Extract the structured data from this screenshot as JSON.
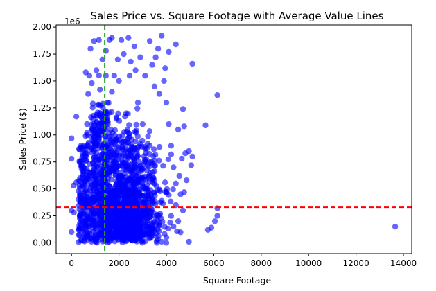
{
  "chart_data": {
    "type": "scatter",
    "title": "Sales Price vs. Square Footage with Average Value Lines",
    "xlabel": "Square Footage",
    "ylabel": "Sales Price ($)",
    "y_offset_label": "1e6",
    "xlim": [
      -650,
      14350
    ],
    "ylim": [
      -0.1,
      2.02
    ],
    "x_ticks": [
      0,
      2000,
      4000,
      6000,
      8000,
      10000,
      12000,
      14000
    ],
    "x_tick_labels": [
      "0",
      "2000",
      "4000",
      "6000",
      "8000",
      "10000",
      "12000",
      "14000"
    ],
    "y_ticks": [
      0.0,
      0.25,
      0.5,
      0.75,
      1.0,
      1.25,
      1.5,
      1.75,
      2.0
    ],
    "y_tick_labels": [
      "0.00",
      "0.25",
      "0.50",
      "0.75",
      "1.00",
      "1.25",
      "1.50",
      "1.75",
      "2.00"
    ],
    "grid": false,
    "point_color": "#0000ff",
    "point_alpha": 0.6,
    "avg_sqft_line": {
      "x": 1400,
      "color": "#2ca02c",
      "style": "dashed"
    },
    "avg_price_line": {
      "y": 0.33,
      "color": "#ff0000",
      "style": "dashed"
    },
    "series": [
      {
        "points": [
          [
            13650,
            0.15
          ],
          [
            6150,
            1.37
          ],
          [
            6150,
            0.32
          ],
          [
            6150,
            0.25
          ],
          [
            5750,
            0.12
          ],
          [
            5900,
            0.14
          ],
          [
            6050,
            0.2
          ],
          [
            5650,
            1.09
          ],
          [
            5100,
            1.66
          ],
          [
            4950,
            0.01
          ],
          [
            5100,
            0.8
          ],
          [
            5050,
            0.72
          ],
          [
            4950,
            0.85
          ],
          [
            4800,
            0.83
          ],
          [
            4700,
            1.24
          ],
          [
            4750,
            1.08
          ],
          [
            4500,
            1.05
          ],
          [
            4400,
            1.84
          ],
          [
            4100,
            1.77
          ],
          [
            3800,
            1.92
          ],
          [
            3650,
            1.8
          ],
          [
            3300,
            1.87
          ],
          [
            2400,
            1.9
          ],
          [
            2100,
            1.88
          ],
          [
            1700,
            1.9
          ],
          [
            1600,
            1.88
          ],
          [
            1150,
            1.88
          ],
          [
            950,
            1.87
          ],
          [
            1300,
            1.7
          ],
          [
            800,
            1.8
          ],
          [
            200,
            1.17
          ],
          [
            0,
            0.1
          ],
          [
            80,
            0.53
          ],
          [
            100,
            0.28
          ],
          [
            0,
            0.3
          ],
          [
            200,
            0.56
          ],
          [
            600,
            1.58
          ],
          [
            900,
            1.29
          ],
          [
            700,
            1.38
          ],
          [
            850,
            1.48
          ],
          [
            650,
            1.02
          ],
          [
            400,
            0.9
          ],
          [
            600,
            0.8
          ],
          [
            500,
            0.67
          ],
          [
            300,
            0.48
          ],
          [
            750,
            1.55
          ],
          [
            1050,
            1.6
          ],
          [
            1200,
            1.42
          ],
          [
            1450,
            1.55
          ],
          [
            1500,
            1.3
          ],
          [
            1800,
            1.55
          ],
          [
            2000,
            1.5
          ],
          [
            2200,
            1.75
          ],
          [
            2500,
            1.68
          ],
          [
            2700,
            1.6
          ],
          [
            2900,
            1.72
          ],
          [
            3100,
            1.55
          ],
          [
            3400,
            1.65
          ],
          [
            3500,
            1.45
          ],
          [
            3700,
            1.38
          ],
          [
            3900,
            1.5
          ],
          [
            4000,
            1.3
          ],
          [
            4100,
            1.1
          ],
          [
            4200,
            0.9
          ],
          [
            4300,
            0.7
          ],
          [
            4400,
            0.55
          ],
          [
            4600,
            0.45
          ],
          [
            4700,
            0.3
          ],
          [
            4500,
            0.2
          ],
          [
            4300,
            0.15
          ],
          [
            4000,
            0.05
          ],
          [
            3800,
            0.01
          ],
          [
            3600,
            0.0
          ],
          [
            4000,
            0.0
          ],
          [
            3300,
            0.9
          ],
          [
            3000,
            1.1
          ],
          [
            2800,
            1.3
          ],
          [
            2300,
            1.2
          ],
          [
            1900,
            1.15
          ],
          [
            1700,
            1.4
          ],
          [
            1650,
            1.05
          ],
          [
            1250,
            1.0
          ],
          [
            1100,
            0.7
          ],
          [
            950,
            0.85
          ],
          [
            4550,
            0.62
          ],
          [
            4650,
            0.78
          ],
          [
            4200,
            0.82
          ],
          [
            4850,
            0.58
          ],
          [
            4750,
            0.47
          ],
          [
            4400,
            0.35
          ],
          [
            3550,
            1.72
          ],
          [
            2650,
            1.82
          ],
          [
            1950,
            1.7
          ],
          [
            1450,
            1.78
          ],
          [
            3950,
            1.62
          ],
          [
            2450,
            1.55
          ]
        ]
      }
    ]
  }
}
